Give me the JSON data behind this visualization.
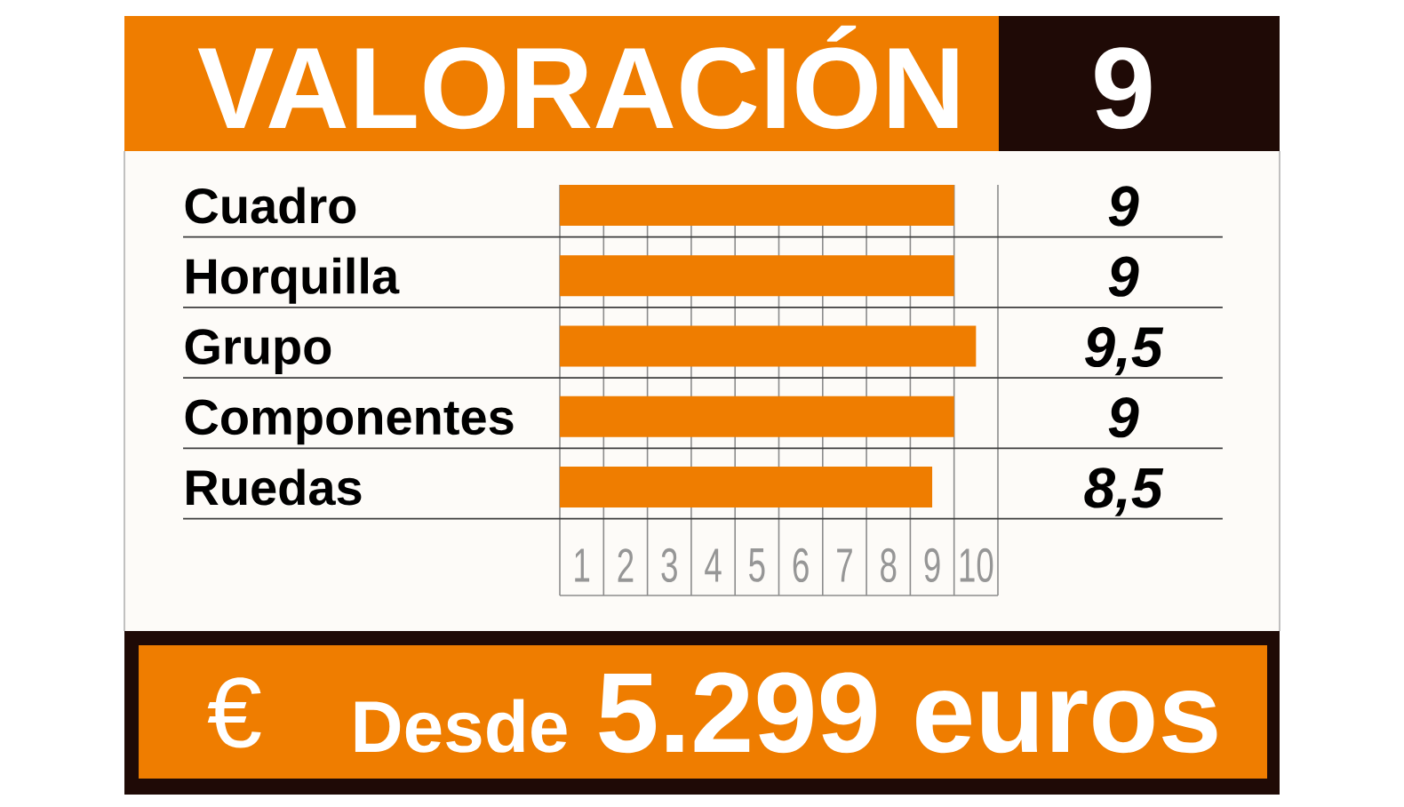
{
  "chart_data": {
    "type": "bar",
    "orientation": "horizontal",
    "title": "VALORACIÓN",
    "categories": [
      "Cuadro",
      "Horquilla",
      "Grupo",
      "Componentes",
      "Ruedas"
    ],
    "values": [
      9,
      9,
      9.5,
      9,
      8.5
    ],
    "base": [
      0.5,
      0.5,
      0.5,
      0.5,
      0.5
    ],
    "value_labels": [
      "9",
      "9",
      "9,5",
      "9",
      "8,5"
    ],
    "color": "#ef7d00",
    "xlim": [
      0.5,
      10.5
    ],
    "xticks": [
      {
        "value": 0.5,
        "label": null
      },
      1,
      {
        "value": 1.5,
        "label": null
      },
      2,
      {
        "value": 2.5,
        "label": null
      },
      3,
      {
        "value": 3.5,
        "label": null
      },
      4,
      {
        "value": 4.5,
        "label": null
      },
      5,
      {
        "value": 5.5,
        "label": null
      },
      6,
      {
        "value": 6.5,
        "label": null
      },
      7,
      {
        "value": 7.5,
        "label": null
      },
      8,
      {
        "value": 8.5,
        "label": null
      },
      9,
      {
        "value": 9.5,
        "label": null
      },
      10,
      {
        "value": 10.5,
        "label": null
      }
    ],
    "grid": true,
    "annotations": [
      "9",
      "€",
      "Desde",
      "5.299 euros"
    ]
  }
}
